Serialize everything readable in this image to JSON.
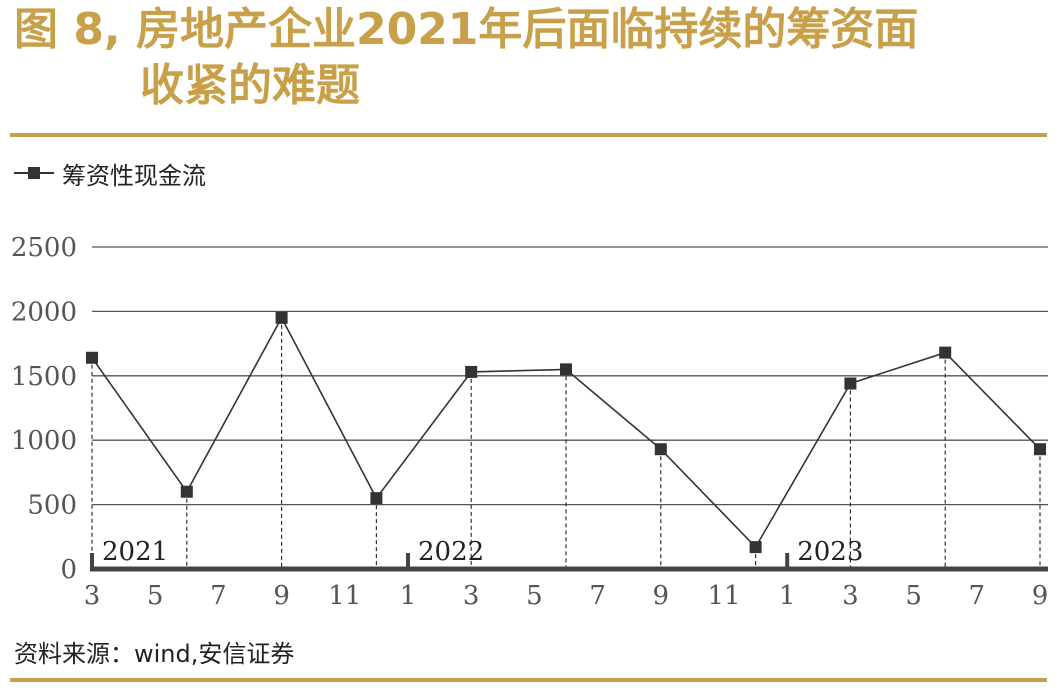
{
  "title": {
    "line1": "图 8, 房地产企业2021年后面临持续的筹资面",
    "line2": "收紧的难题"
  },
  "legend": {
    "label": "筹资性现金流"
  },
  "source": "资料来源：wind,安信证券",
  "colors": {
    "accent": "#c9a04a",
    "series": "#333333",
    "grid": "#555555",
    "axis": "#444444",
    "tick_text": "#555555"
  },
  "chart_data": {
    "type": "line",
    "title": "",
    "xlabel": "",
    "ylabel": "",
    "ylim": [
      0,
      2500
    ],
    "y_ticks": [
      0,
      500,
      1000,
      1500,
      2000,
      2500
    ],
    "grid": true,
    "legend_position": "top-left",
    "x_tick_labels": [
      "3",
      "5",
      "7",
      "9",
      "11",
      "1",
      "3",
      "5",
      "7",
      "9",
      "11",
      "1",
      "3",
      "5",
      "7",
      "9"
    ],
    "year_labels": [
      {
        "label": "2021",
        "month_index": 0
      },
      {
        "label": "2022",
        "month_index": 10
      },
      {
        "label": "2023",
        "month_index": 22
      }
    ],
    "series": [
      {
        "name": "筹资性现金流",
        "points": [
          {
            "x": "2021-03",
            "month_index": 0,
            "y": 1640
          },
          {
            "x": "2021-06",
            "month_index": 3,
            "y": 600
          },
          {
            "x": "2021-09",
            "month_index": 6,
            "y": 1950
          },
          {
            "x": "2021-12",
            "month_index": 9,
            "y": 550
          },
          {
            "x": "2022-03",
            "month_index": 12,
            "y": 1530
          },
          {
            "x": "2022-06",
            "month_index": 15,
            "y": 1550
          },
          {
            "x": "2022-09",
            "month_index": 18,
            "y": 930
          },
          {
            "x": "2022-12",
            "month_index": 21,
            "y": 170
          },
          {
            "x": "2023-03",
            "month_index": 24,
            "y": 1440
          },
          {
            "x": "2023-06",
            "month_index": 27,
            "y": 1680
          },
          {
            "x": "2023-09",
            "month_index": 30,
            "y": 930
          }
        ]
      }
    ]
  }
}
